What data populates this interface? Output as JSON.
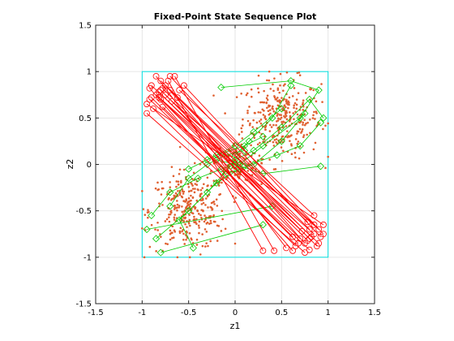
{
  "chart_data": {
    "type": "scatter",
    "title": "Fixed-Point State Sequence Plot",
    "xlabel": "z1",
    "ylabel": "z2",
    "xlim": [
      -1.5,
      1.5
    ],
    "ylim": [
      -1.5,
      1.5
    ],
    "xticks": [
      "-1.5",
      "-1",
      "-0.5",
      "0",
      "0.5",
      "1",
      "1.5"
    ],
    "yticks": [
      "-1.5",
      "-1",
      "-0.5",
      "0",
      "0.5",
      "1",
      "1.5"
    ],
    "xtick_values": [
      -1.5,
      -1,
      -0.5,
      0,
      0.5,
      1,
      1.5
    ],
    "ytick_values": [
      -1.5,
      -1,
      -0.5,
      0,
      0.5,
      1,
      1.5
    ],
    "grid": true,
    "boundary_box": {
      "x": [
        -1,
        1
      ],
      "y": [
        -1,
        1
      ],
      "color": "#00e0e0"
    },
    "colors": {
      "scatter": "#e06030",
      "red_traj": "#ff0000",
      "green_traj": "#00cc00"
    },
    "series": [
      {
        "style": "dots",
        "color": "#e06030",
        "clusters": [
          {
            "center": [
              0.5,
              0.5
            ],
            "spread": [
              0.35,
              0.35
            ],
            "count": 320
          },
          {
            "center": [
              -0.5,
              -0.5
            ],
            "spread": [
              0.35,
              0.35
            ],
            "count": 320
          },
          {
            "center": [
              0.0,
              0.0
            ],
            "spread": [
              0.2,
              0.2
            ],
            "count": 120
          }
        ]
      },
      {
        "style": "red-trajectories",
        "color": "#ff0000",
        "segments": [
          [
            [
              -0.8,
              0.8
            ],
            [
              0.8,
              -0.8
            ]
          ],
          [
            [
              -0.78,
              0.82
            ],
            [
              0.82,
              -0.78
            ]
          ],
          [
            [
              -0.82,
              0.78
            ],
            [
              0.78,
              -0.82
            ]
          ],
          [
            [
              -0.75,
              0.85
            ],
            [
              0.75,
              -0.85
            ]
          ],
          [
            [
              -0.85,
              0.75
            ],
            [
              0.85,
              -0.75
            ]
          ],
          [
            [
              -0.7,
              0.8
            ],
            [
              0.8,
              -0.7
            ]
          ],
          [
            [
              -0.8,
              0.7
            ],
            [
              0.7,
              -0.8
            ]
          ],
          [
            [
              -0.9,
              0.85
            ],
            [
              0.9,
              -0.85
            ]
          ],
          [
            [
              -0.72,
              0.9
            ],
            [
              0.3,
              -0.93
            ]
          ],
          [
            [
              -0.65,
              0.95
            ],
            [
              0.42,
              -0.93
            ]
          ],
          [
            [
              -0.95,
              0.65
            ],
            [
              0.95,
              -0.65
            ]
          ],
          [
            [
              -0.92,
              0.82
            ],
            [
              0.62,
              -0.93
            ]
          ],
          [
            [
              -0.6,
              0.8
            ],
            [
              0.85,
              -0.55
            ]
          ],
          [
            [
              -0.88,
              0.6
            ],
            [
              0.65,
              -0.88
            ]
          ],
          [
            [
              -0.68,
              0.68
            ],
            [
              0.9,
              -0.7
            ]
          ],
          [
            [
              -0.85,
              0.95
            ],
            [
              0.55,
              -0.9
            ]
          ],
          [
            [
              -0.55,
              0.85
            ],
            [
              0.95,
              -0.75
            ]
          ],
          [
            [
              -0.95,
              0.55
            ],
            [
              0.75,
              -0.95
            ]
          ],
          [
            [
              -0.82,
              0.72
            ],
            [
              0.72,
              -0.72
            ]
          ],
          [
            [
              -0.75,
              0.75
            ],
            [
              0.88,
              -0.88
            ]
          ],
          [
            [
              -0.8,
              0.9
            ],
            [
              0.85,
              -0.65
            ]
          ],
          [
            [
              -0.9,
              0.72
            ],
            [
              0.68,
              -0.85
            ]
          ],
          [
            [
              -0.7,
              0.95
            ],
            [
              0.92,
              -0.78
            ]
          ],
          [
            [
              -0.92,
              0.7
            ],
            [
              0.8,
              -0.92
            ]
          ],
          [
            [
              -0.62,
              0.72
            ],
            [
              0.78,
              -0.62
            ]
          ],
          [
            [
              -0.78,
              0.62
            ],
            [
              0.62,
              -0.78
            ]
          ]
        ]
      },
      {
        "style": "green-trajectories",
        "color": "#00cc00",
        "paths": [
          [
            [
              -0.15,
              0.83
            ],
            [
              0.6,
              0.9
            ],
            [
              0.9,
              0.8
            ],
            [
              0.7,
              0.5
            ],
            [
              0.3,
              0.2
            ],
            [
              0.05,
              0.0
            ]
          ],
          [
            [
              0.92,
              -0.02
            ],
            [
              0.3,
              -0.1
            ],
            [
              0.0,
              0.0
            ],
            [
              -0.2,
              0.05
            ]
          ],
          [
            [
              0.95,
              0.5
            ],
            [
              0.8,
              0.7
            ],
            [
              0.5,
              0.4
            ],
            [
              0.2,
              0.15
            ],
            [
              0.0,
              0.05
            ]
          ],
          [
            [
              0.92,
              0.45
            ],
            [
              0.7,
              0.2
            ],
            [
              0.45,
              0.1
            ],
            [
              0.1,
              -0.02
            ]
          ],
          [
            [
              -0.9,
              -0.55
            ],
            [
              -0.7,
              -0.3
            ],
            [
              -0.4,
              -0.15
            ],
            [
              -0.15,
              -0.05
            ],
            [
              0.0,
              0.0
            ]
          ],
          [
            [
              -0.85,
              -0.8
            ],
            [
              -0.5,
              -0.5
            ],
            [
              -0.2,
              -0.2
            ],
            [
              0.05,
              -0.05
            ]
          ],
          [
            [
              -0.45,
              -0.9
            ],
            [
              -0.6,
              -0.6
            ],
            [
              -0.3,
              -0.3
            ],
            [
              -0.05,
              -0.02
            ]
          ],
          [
            [
              -0.8,
              -0.95
            ],
            [
              0.3,
              -0.65
            ]
          ],
          [
            [
              -0.95,
              -0.7
            ],
            [
              0.4,
              -0.45
            ]
          ],
          [
            [
              -0.7,
              -0.45
            ],
            [
              -0.5,
              -0.15
            ],
            [
              -0.3,
              0.0
            ],
            [
              -0.1,
              0.1
            ],
            [
              0.1,
              0.15
            ]
          ],
          [
            [
              0.6,
              0.85
            ],
            [
              0.4,
              0.5
            ],
            [
              0.15,
              0.25
            ],
            [
              0.0,
              0.1
            ]
          ],
          [
            [
              -0.5,
              -0.05
            ],
            [
              -0.2,
              0.1
            ],
            [
              0.1,
              0.2
            ],
            [
              0.3,
              0.3
            ]
          ],
          [
            [
              0.75,
              0.55
            ],
            [
              0.5,
              0.25
            ],
            [
              0.2,
              0.0
            ],
            [
              -0.1,
              -0.1
            ]
          ],
          [
            [
              -0.3,
              0.05
            ],
            [
              0.0,
              0.2
            ],
            [
              0.2,
              0.35
            ],
            [
              0.5,
              0.6
            ]
          ]
        ]
      }
    ]
  }
}
